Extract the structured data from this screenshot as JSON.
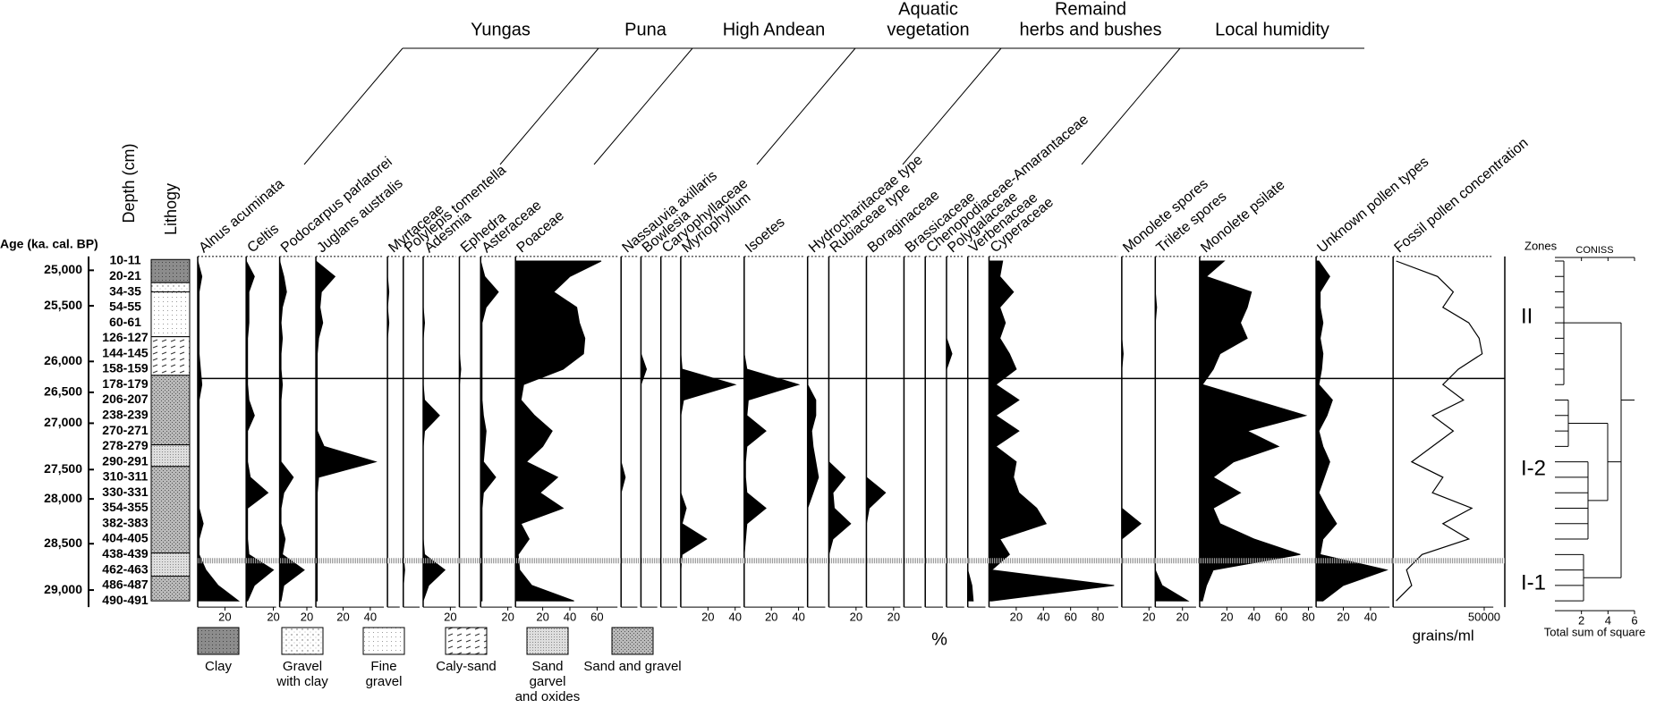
{
  "chart_data": {
    "type": "pollen-diagram",
    "age_title": "Age (ka. cal. BP)",
    "depth_title": "Depth (cm)",
    "xlabel": "%",
    "zones_title": "Zones",
    "ylim": [
      -0.3,
      22.4
    ],
    "samples": [
      "10-11",
      "20-21",
      "34-35",
      "54-55",
      "60-61",
      "126-127",
      "144-145",
      "158-159",
      "178-179",
      "206-207",
      "238-239",
      "270-271",
      "278-279",
      "290-291",
      "310-311",
      "330-331",
      "354-355",
      "382-383",
      "404-405",
      "438-439",
      "462-463",
      "486-487",
      "490-491"
    ],
    "age_ticks": [
      {
        "value": 25000,
        "label": "25,000",
        "position": 0.6
      },
      {
        "value": 25500,
        "label": "25,500",
        "position": 2.9
      },
      {
        "value": 26000,
        "label": "26,000",
        "position": 6.5
      },
      {
        "value": 26500,
        "label": "26,500",
        "position": 8.5
      },
      {
        "value": 27000,
        "label": "27,000",
        "position": 10.5
      },
      {
        "value": 27500,
        "label": "27,500",
        "position": 13.5
      },
      {
        "value": 28000,
        "label": "28,000",
        "position": 15.4
      },
      {
        "value": 28500,
        "label": "28,500",
        "position": 18.3
      },
      {
        "value": 29000,
        "label": "29,000",
        "position": 21.3
      }
    ],
    "lithology": {
      "title": "Lithogy",
      "types": [
        {
          "pattern": "clay",
          "lines": [
            "Clay"
          ]
        },
        {
          "pattern": "gravel-clay",
          "lines": [
            "Gravel",
            "with clay"
          ]
        },
        {
          "pattern": "fine-gravel",
          "lines": [
            "Fine",
            "gravel"
          ]
        },
        {
          "pattern": "caly-sand",
          "lines": [
            "Caly-sand"
          ]
        },
        {
          "pattern": "sand-oxides",
          "lines": [
            "Sand",
            "garvel",
            "and oxides"
          ]
        },
        {
          "pattern": "sand-gravel",
          "lines": [
            "Sand and gravel"
          ]
        }
      ],
      "layers": [
        {
          "pattern": "clay",
          "from": -0.1,
          "to": 1.4
        },
        {
          "pattern": "gravel-clay",
          "from": 1.4,
          "to": 2.0
        },
        {
          "pattern": "fine-gravel",
          "from": 2.0,
          "to": 4.9
        },
        {
          "pattern": "caly-sand",
          "from": 4.9,
          "to": 7.4
        },
        {
          "pattern": "sand-gravel",
          "from": 7.4,
          "to": 11.9
        },
        {
          "pattern": "sand-oxides",
          "from": 11.9,
          "to": 13.3
        },
        {
          "pattern": "sand-gravel",
          "from": 13.3,
          "to": 18.9
        },
        {
          "pattern": "sand-oxides",
          "from": 18.9,
          "to": 20.4
        },
        {
          "pattern": "sand-gravel",
          "from": 20.4,
          "to": 22.0
        }
      ]
    },
    "groups": [
      {
        "lines": [
          "Yungas"
        ]
      },
      {
        "lines": [
          "Puna"
        ]
      },
      {
        "lines": [
          "High Andean"
        ]
      },
      {
        "lines": [
          "Aquatic",
          "vegetation"
        ]
      },
      {
        "lines": [
          "Remaind",
          "herbs and bushes"
        ]
      },
      {
        "lines": [
          "Local humidity"
        ]
      }
    ],
    "color": "#000000",
    "taxa": [
      {
        "name": "Alnus acuminata",
        "kind": "area",
        "xlim": [
          0,
          33
        ],
        "xticks": [
          20
        ],
        "values": [
          0,
          3,
          1,
          1,
          1,
          1,
          1,
          2,
          3,
          1,
          1,
          1,
          1,
          1,
          1,
          1,
          1,
          4,
          1,
          1,
          6,
          15,
          30
        ]
      },
      {
        "name": "Celtis",
        "kind": "area",
        "xlim": [
          0,
          22
        ],
        "xticks": [
          20
        ],
        "values": [
          0,
          6,
          2,
          2,
          2,
          1,
          1,
          1,
          1,
          2,
          6,
          1,
          1,
          1,
          3,
          16,
          1,
          1,
          1,
          2,
          20,
          6,
          1
        ]
      },
      {
        "name": "Podocarpus parlatorei",
        "kind": "area",
        "xlim": [
          0,
          24
        ],
        "xticks": [
          20
        ],
        "values": [
          0,
          3,
          5,
          2,
          1,
          2,
          1,
          1,
          2,
          1,
          1,
          1,
          1,
          1,
          10,
          3,
          1,
          1,
          4,
          2,
          18,
          3,
          1
        ]
      },
      {
        "name": "Juglans australis",
        "kind": "area",
        "xlim": [
          0,
          50
        ],
        "xticks": [
          20,
          40
        ],
        "values": [
          0,
          14,
          4,
          3,
          5,
          2,
          1,
          1,
          1,
          1,
          1,
          1,
          6,
          44,
          2,
          1,
          1,
          1,
          1,
          1,
          1,
          1,
          1
        ]
      },
      {
        "name": "Myrtaceae",
        "kind": "area",
        "xlim": [
          0,
          9
        ],
        "xticks": [],
        "values": [
          0,
          0,
          1,
          0,
          1,
          0,
          0,
          0,
          0,
          0,
          0,
          0,
          0,
          0,
          0,
          0,
          0,
          0,
          0,
          0,
          0,
          0,
          0
        ]
      },
      {
        "name": "Polylepis tomentella",
        "kind": "area",
        "xlim": [
          0,
          12
        ],
        "xticks": [],
        "values": [
          0,
          0,
          0,
          0,
          0,
          0,
          0,
          0,
          0,
          0,
          0,
          0,
          0,
          0,
          0,
          0,
          0,
          0,
          0,
          0,
          1,
          0,
          0
        ]
      },
      {
        "name": "Adesmia",
        "kind": "area",
        "xlim": [
          0,
          24
        ],
        "xticks": [
          20
        ],
        "values": [
          0,
          0,
          0,
          0,
          1,
          0,
          0,
          0,
          0,
          1,
          12,
          1,
          0,
          0,
          0,
          0,
          0,
          0,
          0,
          1,
          16,
          4,
          0
        ]
      },
      {
        "name": "Ephedra",
        "kind": "area",
        "xlim": [
          0,
          13
        ],
        "xticks": [],
        "values": [
          0,
          0,
          0,
          0,
          0,
          0,
          0,
          1,
          0,
          0,
          0,
          0,
          0,
          0,
          0,
          0,
          0,
          0,
          0,
          0,
          0,
          0,
          0
        ]
      },
      {
        "name": "Asteraceae",
        "kind": "area",
        "xlim": [
          0,
          23
        ],
        "xticks": [
          20
        ],
        "values": [
          0,
          3,
          13,
          4,
          1,
          1,
          1,
          1,
          1,
          1,
          2,
          4,
          3,
          2,
          11,
          2,
          1,
          1,
          1,
          1,
          1,
          1,
          1
        ]
      },
      {
        "name": "Poaceae",
        "kind": "area",
        "xlim": [
          0,
          75
        ],
        "xticks": [
          20,
          40,
          60
        ],
        "values": [
          63,
          40,
          28,
          45,
          47,
          51,
          50,
          35,
          6,
          4,
          14,
          27,
          20,
          8,
          31,
          18,
          35,
          4,
          10,
          2,
          3,
          12,
          43
        ]
      },
      {
        "name": "Nassauvia axillaris",
        "kind": "area",
        "xlim": [
          0,
          12
        ],
        "xticks": [],
        "values": [
          0,
          0,
          0,
          0,
          0,
          0,
          0,
          0,
          0,
          0,
          0,
          0,
          0,
          0,
          3,
          0,
          0,
          0,
          0,
          0,
          0,
          0,
          0
        ]
      },
      {
        "name": "Bowlesia",
        "kind": "area",
        "xlim": [
          0,
          12
        ],
        "xticks": [],
        "values": [
          0,
          0,
          0,
          0,
          0,
          0,
          0,
          4,
          0,
          0,
          0,
          0,
          0,
          0,
          0,
          0,
          0,
          0,
          0,
          0,
          0,
          0,
          0
        ]
      },
      {
        "name": "Caryophyllaceae",
        "kind": "area",
        "xlim": [
          0,
          12
        ],
        "xticks": [],
        "values": [
          0,
          0,
          0,
          0,
          0,
          0,
          0,
          0,
          0,
          0,
          0,
          0,
          0,
          0,
          0,
          0,
          0,
          0,
          0,
          0,
          0,
          0,
          0
        ]
      },
      {
        "name": "Myriophyllum",
        "kind": "area",
        "xlim": [
          0,
          44
        ],
        "xticks": [
          20,
          40
        ],
        "values": [
          0,
          0,
          0,
          0,
          0,
          0,
          0,
          1,
          40,
          2,
          0,
          0,
          0,
          0,
          0,
          0,
          4,
          1,
          19,
          1,
          0,
          0,
          0
        ]
      },
      {
        "name": "Isoetes",
        "kind": "area",
        "xlim": [
          0,
          44
        ],
        "xticks": [
          20,
          40
        ],
        "values": [
          0,
          0,
          0,
          0,
          0,
          0,
          0,
          2,
          40,
          3,
          2,
          16,
          2,
          1,
          1,
          2,
          16,
          2,
          1,
          0,
          0,
          0,
          0
        ]
      },
      {
        "name": "Hydrocharitaceae type",
        "kind": "area",
        "xlim": [
          0,
          13
        ],
        "xticks": [],
        "values": [
          0,
          0,
          0,
          0,
          0,
          0,
          0,
          0,
          0,
          6,
          6,
          3,
          4,
          6,
          8,
          4,
          0,
          0,
          0,
          0,
          0,
          0,
          0
        ]
      },
      {
        "name": "Rubiaceae type",
        "kind": "area",
        "xlim": [
          0,
          25
        ],
        "xticks": [
          20
        ],
        "values": [
          0,
          0,
          0,
          0,
          0,
          0,
          0,
          0,
          0,
          0,
          0,
          0,
          0,
          0,
          12,
          3,
          4,
          16,
          3,
          0,
          0,
          0,
          0
        ]
      },
      {
        "name": "Boraginaceae",
        "kind": "area",
        "xlim": [
          0,
          25
        ],
        "xticks": [
          20
        ],
        "values": [
          0,
          0,
          0,
          0,
          0,
          0,
          0,
          0,
          0,
          0,
          0,
          0,
          0,
          0,
          0,
          14,
          2,
          0,
          0,
          0,
          0,
          0,
          0
        ]
      },
      {
        "name": "Brassicaceae",
        "kind": "area",
        "xlim": [
          0,
          13
        ],
        "xticks": [],
        "values": [
          0,
          0,
          0,
          0,
          0,
          0,
          0,
          0,
          0,
          0,
          0,
          0,
          0,
          0,
          0,
          0,
          0,
          0,
          0,
          0,
          0,
          0,
          0
        ]
      },
      {
        "name": "Chenopodiaceae-Amarantaceae",
        "kind": "area",
        "xlim": [
          0,
          13
        ],
        "xticks": [],
        "values": [
          0,
          0,
          0,
          0,
          0,
          0,
          0,
          0,
          0,
          0,
          0,
          0,
          0,
          0,
          0,
          0,
          0,
          0,
          0,
          0,
          0,
          0,
          0
        ]
      },
      {
        "name": "Polygalaceae",
        "kind": "area",
        "xlim": [
          0,
          13
        ],
        "xticks": [],
        "values": [
          0,
          0,
          0,
          0,
          0,
          0,
          4,
          0,
          0,
          0,
          0,
          0,
          0,
          0,
          0,
          0,
          0,
          0,
          0,
          0,
          0,
          0,
          0
        ]
      },
      {
        "name": "Verbenaceae",
        "kind": "area",
        "xlim": [
          0,
          13
        ],
        "xticks": [],
        "values": [
          0,
          0,
          0,
          0,
          0,
          0,
          0,
          0,
          0,
          0,
          0,
          0,
          0,
          0,
          0,
          0,
          0,
          0,
          0,
          0,
          0,
          3,
          4
        ]
      },
      {
        "name": "Cyperaceae",
        "kind": "area",
        "xlim": [
          0,
          95
        ],
        "xticks": [
          20,
          40,
          60,
          80
        ],
        "values": [
          10,
          8,
          18,
          8,
          12,
          8,
          15,
          20,
          5,
          22,
          5,
          22,
          5,
          20,
          18,
          22,
          35,
          42,
          8,
          15,
          2,
          92,
          2
        ]
      },
      {
        "name": "Monolete spores",
        "kind": "area",
        "xlim": [
          0,
          22
        ],
        "xticks": [
          20
        ],
        "values": [
          0,
          0,
          0,
          0,
          0,
          0,
          1,
          0,
          0,
          0,
          0,
          0,
          0,
          0,
          0,
          0,
          0,
          14,
          0,
          0,
          0,
          0,
          0
        ]
      },
      {
        "name": "Trilete spores",
        "kind": "area",
        "xlim": [
          0,
          30
        ],
        "xticks": [
          20
        ],
        "values": [
          0,
          0,
          0,
          1,
          0,
          0,
          0,
          0,
          0,
          0,
          0,
          0,
          0,
          0,
          0,
          0,
          0,
          0,
          0,
          0,
          0,
          5,
          24
        ]
      },
      {
        "name": "Monolete psilate",
        "kind": "area",
        "xlim": [
          0,
          83
        ],
        "xticks": [
          20,
          40,
          60,
          80
        ],
        "values": [
          18,
          5,
          38,
          35,
          30,
          35,
          15,
          10,
          2,
          40,
          78,
          35,
          58,
          25,
          10,
          30,
          10,
          15,
          40,
          74,
          10,
          5,
          2
        ]
      },
      {
        "name": "Unknown pollen types",
        "kind": "area",
        "xlim": [
          0,
          54
        ],
        "xticks": [
          20,
          40
        ],
        "values": [
          2,
          10,
          3,
          3,
          5,
          3,
          5,
          4,
          2,
          12,
          8,
          2,
          5,
          10,
          6,
          2,
          8,
          15,
          5,
          3,
          52,
          20,
          5
        ]
      },
      {
        "name": "Fossil pollen concentration",
        "kind": "line",
        "unit": "grains/ml",
        "xlim": [
          0,
          55000
        ],
        "xticks": [
          50000
        ],
        "values": [
          1700,
          24400,
          33000,
          27300,
          41500,
          47200,
          48900,
          35800,
          27300,
          38600,
          21600,
          33000,
          21600,
          10200,
          27300,
          21600,
          43200,
          27300,
          41500,
          15900,
          7400,
          10200,
          1700
        ]
      }
    ],
    "zones": [
      {
        "name": "II",
        "from": -0.3,
        "to": 7.6,
        "boundary": "solid"
      },
      {
        "name": "I-2",
        "from": 7.6,
        "to": 19.4,
        "boundary": "dotted"
      },
      {
        "name": "I-1",
        "from": 19.4,
        "to": 22.4
      }
    ],
    "coniss": {
      "title": "CONISS",
      "xlabel": "Total sum of square",
      "xlim": [
        0,
        6
      ],
      "xticks": [
        2,
        4,
        6
      ]
    }
  }
}
